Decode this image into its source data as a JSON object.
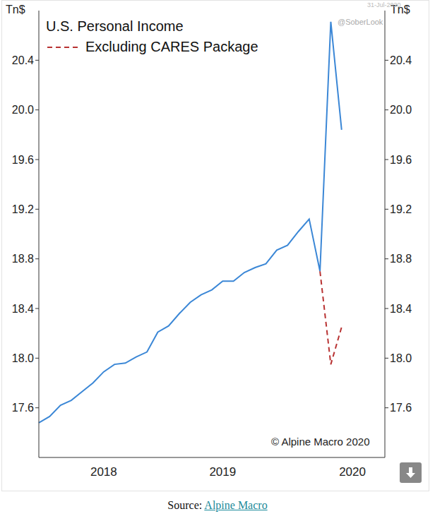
{
  "chart_data": {
    "type": "line",
    "title": "U.S. Personal Income",
    "ylabel": "Tn$",
    "categories": [
      null,
      null,
      null,
      null,
      null,
      null,
      "2018",
      null,
      null,
      null,
      null,
      null,
      null,
      null,
      null,
      null,
      null,
      "2019",
      null,
      null,
      null,
      null,
      null,
      null,
      null,
      null,
      null,
      null,
      null,
      "2020",
      null,
      null,
      null
    ],
    "series": [
      {
        "color": "#3b87d6",
        "line_style": "solid",
        "values": [
          17.48,
          17.53,
          17.62,
          17.66,
          17.73,
          17.8,
          17.89,
          17.95,
          17.96,
          18.01,
          18.05,
          18.21,
          18.26,
          18.36,
          18.45,
          18.51,
          18.55,
          18.62,
          18.62,
          18.69,
          18.73,
          18.76,
          18.87,
          18.91,
          19.02,
          19.12,
          18.7,
          20.71,
          19.84,
          null,
          null,
          null,
          null
        ]
      },
      {
        "name": "Excluding CARES Package",
        "color": "#b83232",
        "line_style": "dashed",
        "values": [
          null,
          null,
          null,
          null,
          null,
          null,
          null,
          null,
          null,
          null,
          null,
          null,
          null,
          null,
          null,
          null,
          null,
          null,
          null,
          null,
          null,
          null,
          null,
          null,
          null,
          null,
          18.7,
          17.95,
          18.25,
          null,
          null,
          null,
          null
        ]
      }
    ],
    "ylim": [
      17.2,
      20.8
    ],
    "yticks": [
      17.6,
      {
        "value": 18,
        "label": "18.0"
      },
      18.4,
      18.8,
      19.2,
      19.6,
      {
        "value": 20,
        "label": "20.0"
      },
      20.4
    ],
    "annotations": [
      "@SoberLook",
      "© Alpine Macro 2020",
      "31-Jul-2020",
      "Source: Alpine Macro"
    ]
  }
}
